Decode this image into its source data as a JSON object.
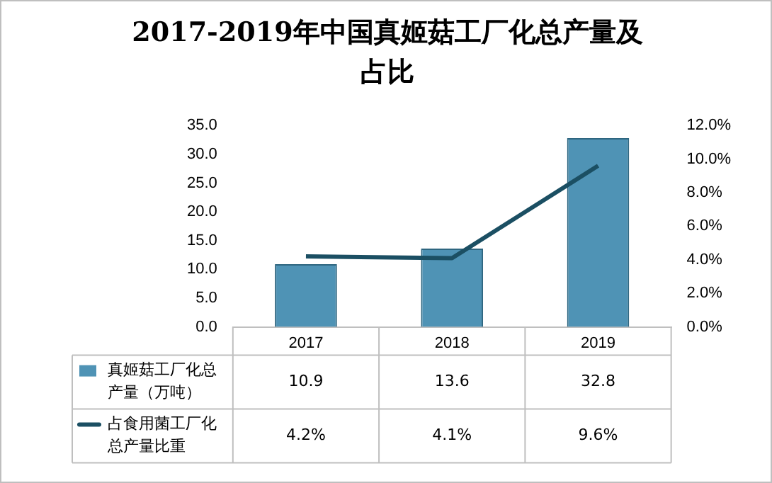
{
  "chart_data": {
    "type": "bar",
    "title": "2017-2019年中国真姬菇工厂化总产量及占比",
    "categories": [
      "2017",
      "2018",
      "2019"
    ],
    "series": [
      {
        "name": "真姬菇工厂化总产量（万吨）",
        "color": "#4f93b5",
        "values": [
          10.9,
          13.6,
          32.8
        ],
        "value_labels": [
          "10.9",
          "13.6",
          "32.8"
        ]
      },
      {
        "name": "占食用菌工厂化总产量比重",
        "type": "line",
        "axis": "y2",
        "color": "#1b4f63",
        "values": [
          4.2,
          4.1,
          9.6
        ],
        "value_labels": [
          "4.2%",
          "4.1%",
          "9.6%"
        ]
      }
    ],
    "ylim": [
      0,
      35
    ],
    "yticks": [
      {
        "value": 0,
        "label": "0.0"
      },
      {
        "value": 5,
        "label": "5.0"
      },
      {
        "value": 10,
        "label": "10.0"
      },
      {
        "value": 15,
        "label": "15.0"
      },
      {
        "value": 20,
        "label": "20.0"
      },
      {
        "value": 25,
        "label": "25.0"
      },
      {
        "value": 30,
        "label": "30.0"
      },
      {
        "value": 35,
        "label": "35.0"
      }
    ],
    "y2lim": [
      0,
      12
    ],
    "y2ticks": [
      {
        "value": 0,
        "label": "0.0%"
      },
      {
        "value": 2,
        "label": "2.0%"
      },
      {
        "value": 4,
        "label": "4.0%"
      },
      {
        "value": 6,
        "label": "6.0%"
      },
      {
        "value": 8,
        "label": "8.0%"
      },
      {
        "value": 10,
        "label": "10.0%"
      },
      {
        "value": 12,
        "label": "12.0%"
      }
    ],
    "grid": false,
    "legend": "bottom",
    "marker": "none",
    "line_style": "solid"
  }
}
